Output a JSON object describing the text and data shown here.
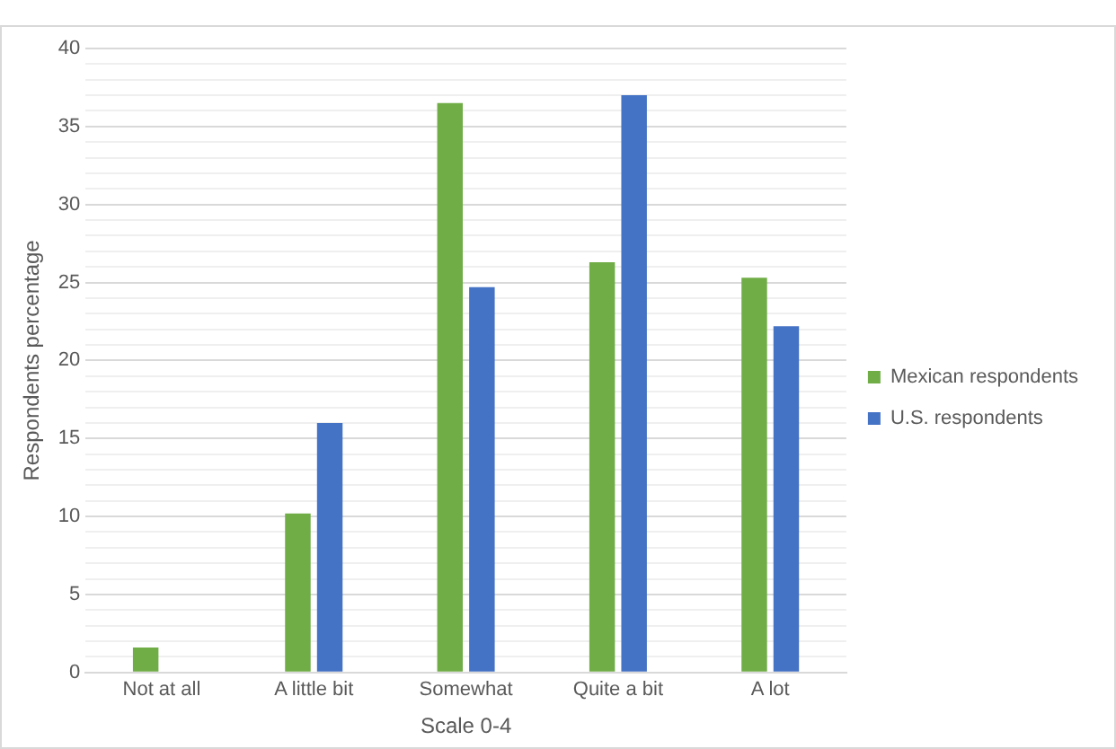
{
  "chart_data": {
    "type": "bar",
    "xlabel": "Scale 0-4",
    "ylabel": "Respondents percentage",
    "categories": [
      "Not at all",
      "A little bit",
      "Somewhat",
      "Quite a bit",
      "A lot"
    ],
    "series": [
      {
        "name": "Mexican respondents",
        "color": "#70ad47",
        "values": [
          1.6,
          10.2,
          36.5,
          26.3,
          25.3
        ]
      },
      {
        "name": "U.S. respondents",
        "color": "#4472c4",
        "values": [
          0,
          16.0,
          24.7,
          37.0,
          22.2
        ]
      }
    ],
    "ylim": [
      0,
      40
    ],
    "yticks": [
      0,
      {
        "value": 1,
        "label": null
      },
      {
        "value": 2,
        "label": null
      },
      {
        "value": 3,
        "label": null
      },
      {
        "value": 4,
        "label": null
      },
      5,
      {
        "value": 6,
        "label": null
      },
      {
        "value": 7,
        "label": null
      },
      {
        "value": 8,
        "label": null
      },
      {
        "value": 9,
        "label": null
      },
      10,
      {
        "value": 11,
        "label": null
      },
      {
        "value": 12,
        "label": null
      },
      {
        "value": 13,
        "label": null
      },
      {
        "value": 14,
        "label": null
      },
      15,
      {
        "value": 16,
        "label": null
      },
      {
        "value": 17,
        "label": null
      },
      {
        "value": 18,
        "label": null
      },
      {
        "value": 19,
        "label": null
      },
      20,
      {
        "value": 21,
        "label": null
      },
      {
        "value": 22,
        "label": null
      },
      {
        "value": 23,
        "label": null
      },
      {
        "value": 24,
        "label": null
      },
      25,
      {
        "value": 26,
        "label": null
      },
      {
        "value": 27,
        "label": null
      },
      {
        "value": 28,
        "label": null
      },
      {
        "value": 29,
        "label": null
      },
      30,
      {
        "value": 31,
        "label": null
      },
      {
        "value": 32,
        "label": null
      },
      {
        "value": 33,
        "label": null
      },
      {
        "value": 34,
        "label": null
      },
      35,
      {
        "value": 36,
        "label": null
      },
      {
        "value": 37,
        "label": null
      },
      {
        "value": 38,
        "label": null
      },
      {
        "value": 39,
        "label": null
      },
      40
    ],
    "grid": "y",
    "legend": "right"
  }
}
